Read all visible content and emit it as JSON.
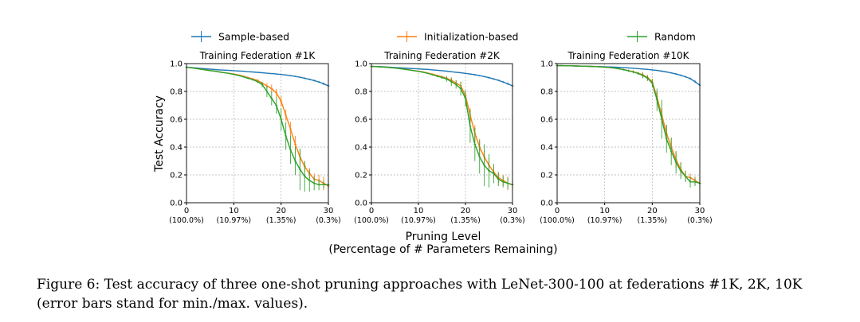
{
  "legend": [
    {
      "name": "Sample-based",
      "color": "#1f77b4"
    },
    {
      "name": "Initialization-based",
      "color": "#ff7f0e"
    },
    {
      "name": "Random",
      "color": "#2ca02c"
    }
  ],
  "ylabel": "Test Accuracy",
  "xlabel_line1": "Pruning Level",
  "xlabel_line2": "(Percentage of # Parameters Remaining)",
  "caption": "Figure 6: Test accuracy of three one-shot pruning approaches with LeNet-300-100 at federations #1K, 2K, 10K (error bars stand for min./max. values).",
  "chart_data": [
    {
      "type": "line",
      "title": "Training Federation #1K",
      "xlim": [
        0,
        30
      ],
      "ylim": [
        0,
        1.0
      ],
      "grid": true,
      "xticks": [
        0,
        10,
        20,
        30
      ],
      "xtick_sublabels": [
        "(100.0%)",
        "(10.97%)",
        "(1.35%)",
        "(0.3%)"
      ],
      "yticks": [
        0.0,
        0.2,
        0.4,
        0.6,
        0.8,
        1.0
      ],
      "x": [
        0,
        1,
        2,
        3,
        4,
        5,
        6,
        7,
        8,
        9,
        10,
        11,
        12,
        13,
        14,
        15,
        16,
        17,
        18,
        19,
        20,
        21,
        22,
        23,
        24,
        25,
        26,
        27,
        28,
        29,
        30
      ],
      "series": [
        {
          "name": "Sample-based",
          "values": [
            0.975,
            0.972,
            0.969,
            0.966,
            0.963,
            0.96,
            0.957,
            0.955,
            0.953,
            0.951,
            0.949,
            0.947,
            0.945,
            0.942,
            0.94,
            0.937,
            0.934,
            0.931,
            0.928,
            0.925,
            0.922,
            0.918,
            0.913,
            0.908,
            0.902,
            0.895,
            0.887,
            0.878,
            0.868,
            0.855,
            0.84
          ],
          "err": [
            0.002,
            0.002,
            0.002,
            0.002,
            0.002,
            0.002,
            0.002,
            0.002,
            0.002,
            0.002,
            0.003,
            0.003,
            0.003,
            0.003,
            0.003,
            0.003,
            0.003,
            0.003,
            0.004,
            0.004,
            0.004,
            0.004,
            0.005,
            0.005,
            0.005,
            0.006,
            0.006,
            0.007,
            0.008,
            0.01,
            0.01
          ]
        },
        {
          "name": "Initialization-based",
          "values": [
            0.975,
            0.97,
            0.965,
            0.96,
            0.955,
            0.95,
            0.945,
            0.94,
            0.935,
            0.93,
            0.925,
            0.918,
            0.91,
            0.9,
            0.89,
            0.88,
            0.86,
            0.84,
            0.82,
            0.79,
            0.73,
            0.63,
            0.53,
            0.42,
            0.33,
            0.26,
            0.21,
            0.17,
            0.16,
            0.14,
            0.12
          ],
          "err": [
            0,
            0,
            0,
            0,
            0,
            0,
            0,
            0,
            0,
            0,
            0.003,
            0.003,
            0.004,
            0.005,
            0.006,
            0.008,
            0.01,
            0.02,
            0.03,
            0.03,
            0.04,
            0.04,
            0.05,
            0.06,
            0.05,
            0.04,
            0.04,
            0.04,
            0.04,
            0.05,
            0.03
          ]
        },
        {
          "name": "Random",
          "values": [
            0.975,
            0.97,
            0.965,
            0.96,
            0.955,
            0.95,
            0.945,
            0.94,
            0.935,
            0.93,
            0.922,
            0.915,
            0.905,
            0.895,
            0.885,
            0.87,
            0.85,
            0.8,
            0.75,
            0.7,
            0.6,
            0.48,
            0.38,
            0.3,
            0.24,
            0.19,
            0.16,
            0.14,
            0.13,
            0.13,
            0.13
          ],
          "err": [
            0,
            0,
            0,
            0,
            0,
            0,
            0,
            0,
            0,
            0,
            0.003,
            0.004,
            0.005,
            0.006,
            0.008,
            0.01,
            0.02,
            0.04,
            0.05,
            0.06,
            0.08,
            0.1,
            0.1,
            0.1,
            0.15,
            0.11,
            0.08,
            0.05,
            0.04,
            0.03,
            0.03
          ]
        }
      ]
    },
    {
      "type": "line",
      "title": "Training Federation #2K",
      "xlim": [
        0,
        30
      ],
      "ylim": [
        0,
        1.0
      ],
      "grid": true,
      "xticks": [
        0,
        10,
        20,
        30
      ],
      "xtick_sublabels": [
        "(100.0%)",
        "(10.97%)",
        "(1.35%)",
        "(0.3%)"
      ],
      "yticks": [
        0.0,
        0.2,
        0.4,
        0.6,
        0.8,
        1.0
      ],
      "x": [
        0,
        1,
        2,
        3,
        4,
        5,
        6,
        7,
        8,
        9,
        10,
        11,
        12,
        13,
        14,
        15,
        16,
        17,
        18,
        19,
        20,
        21,
        22,
        23,
        24,
        25,
        26,
        27,
        28,
        29,
        30
      ],
      "series": [
        {
          "name": "Sample-based",
          "values": [
            0.98,
            0.979,
            0.978,
            0.976,
            0.974,
            0.972,
            0.97,
            0.968,
            0.966,
            0.964,
            0.962,
            0.96,
            0.958,
            0.955,
            0.952,
            0.949,
            0.946,
            0.942,
            0.938,
            0.934,
            0.93,
            0.925,
            0.92,
            0.914,
            0.907,
            0.899,
            0.89,
            0.88,
            0.868,
            0.855,
            0.84
          ],
          "err": [
            0.002,
            0.002,
            0.002,
            0.002,
            0.002,
            0.002,
            0.002,
            0.002,
            0.002,
            0.002,
            0.003,
            0.003,
            0.003,
            0.003,
            0.003,
            0.003,
            0.003,
            0.003,
            0.004,
            0.004,
            0.004,
            0.004,
            0.005,
            0.005,
            0.005,
            0.006,
            0.006,
            0.007,
            0.008,
            0.01,
            0.01
          ]
        },
        {
          "name": "Initialization-based",
          "values": [
            0.98,
            0.978,
            0.976,
            0.974,
            0.971,
            0.968,
            0.964,
            0.96,
            0.955,
            0.95,
            0.945,
            0.94,
            0.932,
            0.924,
            0.915,
            0.905,
            0.895,
            0.88,
            0.86,
            0.84,
            0.77,
            0.63,
            0.5,
            0.4,
            0.33,
            0.27,
            0.22,
            0.18,
            0.16,
            0.14,
            0.13
          ],
          "err": [
            0,
            0,
            0,
            0,
            0,
            0,
            0,
            0,
            0,
            0,
            0.003,
            0.003,
            0.004,
            0.005,
            0.006,
            0.008,
            0.01,
            0.02,
            0.02,
            0.03,
            0.04,
            0.05,
            0.06,
            0.06,
            0.05,
            0.05,
            0.04,
            0.04,
            0.04,
            0.05,
            0.04
          ]
        },
        {
          "name": "Random",
          "values": [
            0.98,
            0.978,
            0.976,
            0.974,
            0.971,
            0.968,
            0.964,
            0.96,
            0.955,
            0.95,
            0.944,
            0.938,
            0.93,
            0.92,
            0.91,
            0.9,
            0.89,
            0.87,
            0.85,
            0.82,
            0.75,
            0.55,
            0.42,
            0.33,
            0.27,
            0.23,
            0.21,
            0.17,
            0.15,
            0.14,
            0.13
          ],
          "err": [
            0,
            0,
            0,
            0,
            0,
            0,
            0,
            0,
            0,
            0,
            0.003,
            0.004,
            0.005,
            0.006,
            0.008,
            0.01,
            0.02,
            0.03,
            0.03,
            0.05,
            0.06,
            0.12,
            0.12,
            0.12,
            0.15,
            0.12,
            0.07,
            0.05,
            0.04,
            0.04,
            0.03
          ]
        }
      ]
    },
    {
      "type": "line",
      "title": "Training Federation #10K",
      "xlim": [
        0,
        30
      ],
      "ylim": [
        0,
        1.0
      ],
      "grid": true,
      "xticks": [
        0,
        10,
        20,
        30
      ],
      "xtick_sublabels": [
        "(100.0%)",
        "(10.97%)",
        "(1.35%)",
        "(0.3%)"
      ],
      "yticks": [
        0.0,
        0.2,
        0.4,
        0.6,
        0.8,
        1.0
      ],
      "x": [
        0,
        1,
        2,
        3,
        4,
        5,
        6,
        7,
        8,
        9,
        10,
        11,
        12,
        13,
        14,
        15,
        16,
        17,
        18,
        19,
        20,
        21,
        22,
        23,
        24,
        25,
        26,
        27,
        28,
        29,
        30
      ],
      "series": [
        {
          "name": "Sample-based",
          "values": [
            0.985,
            0.985,
            0.984,
            0.984,
            0.983,
            0.982,
            0.981,
            0.98,
            0.979,
            0.978,
            0.977,
            0.976,
            0.975,
            0.973,
            0.971,
            0.969,
            0.967,
            0.964,
            0.961,
            0.958,
            0.955,
            0.951,
            0.946,
            0.94,
            0.933,
            0.925,
            0.916,
            0.905,
            0.892,
            0.87,
            0.845
          ],
          "err": [
            0.002,
            0.002,
            0.002,
            0.002,
            0.002,
            0.002,
            0.002,
            0.002,
            0.002,
            0.002,
            0.003,
            0.003,
            0.003,
            0.003,
            0.003,
            0.003,
            0.003,
            0.003,
            0.004,
            0.004,
            0.004,
            0.004,
            0.005,
            0.005,
            0.005,
            0.006,
            0.006,
            0.007,
            0.008,
            0.01,
            0.01
          ]
        },
        {
          "name": "Initialization-based",
          "values": [
            0.985,
            0.985,
            0.984,
            0.984,
            0.983,
            0.982,
            0.981,
            0.98,
            0.979,
            0.977,
            0.975,
            0.972,
            0.968,
            0.963,
            0.957,
            0.95,
            0.942,
            0.932,
            0.92,
            0.9,
            0.87,
            0.76,
            0.63,
            0.5,
            0.4,
            0.31,
            0.24,
            0.19,
            0.18,
            0.16,
            0.14
          ],
          "err": [
            0,
            0,
            0,
            0,
            0,
            0,
            0,
            0,
            0,
            0,
            0.003,
            0.003,
            0.004,
            0.005,
            0.006,
            0.008,
            0.01,
            0.01,
            0.02,
            0.02,
            0.02,
            0.04,
            0.05,
            0.06,
            0.06,
            0.06,
            0.05,
            0.04,
            0.03,
            0.03,
            0.03
          ]
        },
        {
          "name": "Random",
          "values": [
            0.985,
            0.985,
            0.984,
            0.984,
            0.983,
            0.982,
            0.981,
            0.98,
            0.979,
            0.977,
            0.975,
            0.972,
            0.968,
            0.963,
            0.956,
            0.948,
            0.94,
            0.93,
            0.915,
            0.895,
            0.86,
            0.74,
            0.6,
            0.46,
            0.37,
            0.29,
            0.23,
            0.19,
            0.15,
            0.15,
            0.14
          ],
          "err": [
            0,
            0,
            0,
            0,
            0,
            0,
            0,
            0,
            0,
            0,
            0.003,
            0.003,
            0.004,
            0.005,
            0.006,
            0.008,
            0.01,
            0.01,
            0.02,
            0.02,
            0.03,
            0.08,
            0.14,
            0.1,
            0.1,
            0.08,
            0.06,
            0.04,
            0.04,
            0.03,
            0.03
          ]
        }
      ]
    }
  ]
}
